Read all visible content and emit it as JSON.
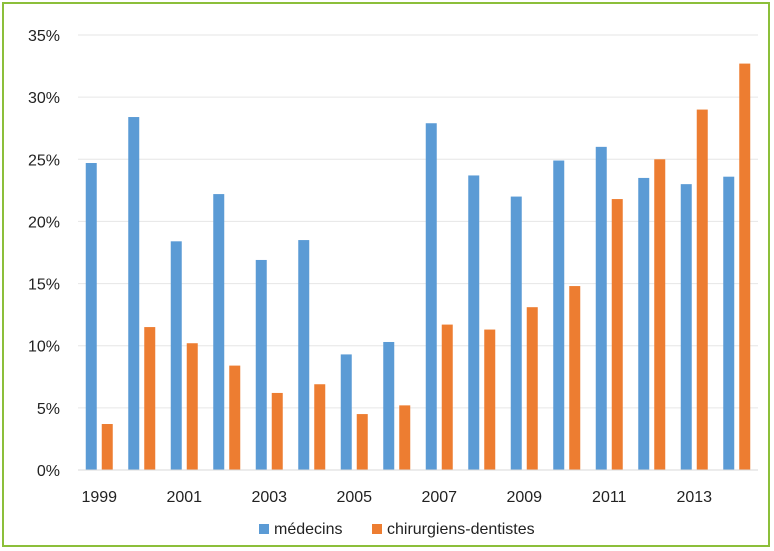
{
  "chart_data": {
    "type": "bar",
    "categories": [
      "1999",
      "2000",
      "2001",
      "2002",
      "2003",
      "2004",
      "2005",
      "2006",
      "2007",
      "2008",
      "2009",
      "2010",
      "2011",
      "2012",
      "2013",
      "2014"
    ],
    "x_tick_labels": [
      "1999",
      "2001",
      "2003",
      "2005",
      "2007",
      "2009",
      "2011",
      "2013"
    ],
    "y_tick_labels": [
      "0%",
      "5%",
      "10%",
      "15%",
      "20%",
      "25%",
      "30%",
      "35%"
    ],
    "ylim": [
      0,
      35
    ],
    "y_unit": "%",
    "grid": true,
    "legend_position": "bottom",
    "series": [
      {
        "name": "médecins",
        "color": "#5b9bd5",
        "values": [
          24.7,
          28.4,
          18.4,
          22.2,
          16.9,
          18.5,
          9.3,
          10.3,
          27.9,
          23.7,
          22.0,
          24.9,
          26.0,
          23.5,
          23.0,
          23.6
        ]
      },
      {
        "name": "chirurgiens-dentistes",
        "color": "#ed7d31",
        "values": [
          3.7,
          11.5,
          10.2,
          8.4,
          6.2,
          6.9,
          4.5,
          5.2,
          11.7,
          11.3,
          13.1,
          14.8,
          21.8,
          25.0,
          29.0,
          32.7
        ]
      }
    ]
  }
}
